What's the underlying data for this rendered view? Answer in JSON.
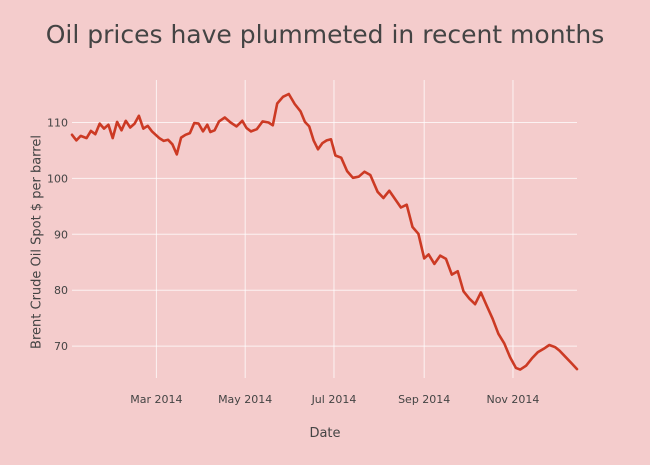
{
  "chart_data": {
    "type": "line",
    "title": "Oil prices have plummeted in recent months",
    "xlabel": "Date",
    "ylabel": "Brent Crude Oil Spot $ per barrel",
    "xlim": [
      "2014-01-02",
      "2014-12-15"
    ],
    "ylim": [
      64.3,
      117.6
    ],
    "grid": true,
    "line_color": "#cc3a24",
    "background_color": "#f4cccc",
    "x_ticks": [
      {
        "date": "2014-03-01",
        "label": "Mar 2014"
      },
      {
        "date": "2014-05-01",
        "label": "May 2014"
      },
      {
        "date": "2014-07-01",
        "label": "Jul 2014"
      },
      {
        "date": "2014-09-01",
        "label": "Sep 2014"
      },
      {
        "date": "2014-11-01",
        "label": "Nov 2014"
      }
    ],
    "y_ticks": [
      70,
      80,
      90,
      100,
      110
    ],
    "series": [
      {
        "x": [
          "2014-01-02",
          "2014-01-05",
          "2014-01-08",
          "2014-01-12",
          "2014-01-15",
          "2014-01-18",
          "2014-01-21",
          "2014-01-24",
          "2014-01-27",
          "2014-01-30",
          "2014-02-02",
          "2014-02-05",
          "2014-02-08",
          "2014-02-11",
          "2014-02-14",
          "2014-02-17",
          "2014-02-20",
          "2014-02-23",
          "2014-02-26",
          "2014-02-28",
          "2014-03-03",
          "2014-03-06",
          "2014-03-09",
          "2014-03-12",
          "2014-03-15",
          "2014-03-18",
          "2014-03-21",
          "2014-03-24",
          "2014-03-27",
          "2014-03-30",
          "2014-04-02",
          "2014-04-05",
          "2014-04-07",
          "2014-04-10",
          "2014-04-13",
          "2014-04-17",
          "2014-04-21",
          "2014-04-25",
          "2014-04-29",
          "2014-05-02",
          "2014-05-05",
          "2014-05-09",
          "2014-05-13",
          "2014-05-17",
          "2014-05-20",
          "2014-05-23",
          "2014-05-27",
          "2014-05-31",
          "2014-06-04",
          "2014-06-08",
          "2014-06-11",
          "2014-06-14",
          "2014-06-17",
          "2014-06-20",
          "2014-06-23",
          "2014-06-26",
          "2014-06-29",
          "2014-07-02",
          "2014-07-06",
          "2014-07-10",
          "2014-07-14",
          "2014-07-18",
          "2014-07-22",
          "2014-07-26",
          "2014-07-31",
          "2014-08-04",
          "2014-08-08",
          "2014-08-12",
          "2014-08-16",
          "2014-08-20",
          "2014-08-24",
          "2014-08-28",
          "2014-09-01",
          "2014-09-04",
          "2014-09-08",
          "2014-09-12",
          "2014-09-16",
          "2014-09-20",
          "2014-09-24",
          "2014-09-28",
          "2014-10-02",
          "2014-10-06",
          "2014-10-10",
          "2014-10-14",
          "2014-10-18",
          "2014-10-22",
          "2014-10-26",
          "2014-10-30",
          "2014-11-03",
          "2014-11-06",
          "2014-11-10",
          "2014-11-14",
          "2014-11-18",
          "2014-11-22",
          "2014-11-26",
          "2014-11-30",
          "2014-12-03",
          "2014-12-07",
          "2014-12-11",
          "2014-12-15"
        ],
        "y": [
          107.8,
          106.8,
          107.6,
          107.2,
          108.5,
          107.9,
          109.8,
          108.9,
          109.6,
          107.2,
          110.1,
          108.6,
          110.3,
          109.1,
          109.8,
          111.2,
          108.9,
          109.4,
          108.4,
          107.9,
          107.2,
          106.7,
          106.9,
          106.1,
          104.3,
          107.3,
          107.8,
          108.1,
          109.9,
          109.8,
          108.4,
          109.6,
          108.3,
          108.6,
          110.2,
          110.9,
          110.0,
          109.3,
          110.3,
          109.0,
          108.4,
          108.8,
          110.2,
          110.0,
          109.5,
          113.4,
          114.6,
          115.1,
          113.3,
          112.0,
          110.1,
          109.3,
          106.8,
          105.2,
          106.3,
          106.8,
          107.0,
          104.1,
          103.7,
          101.3,
          100.1,
          100.3,
          101.2,
          100.6,
          97.6,
          96.5,
          97.8,
          96.3,
          94.8,
          95.3,
          91.3,
          90.1,
          85.7,
          86.4,
          84.7,
          86.2,
          85.6,
          82.8,
          83.4,
          79.8,
          78.5,
          77.5,
          79.6,
          77.2,
          74.9,
          72.2,
          70.5,
          68.0,
          66.1,
          65.8,
          66.5,
          67.8,
          68.9,
          69.5,
          70.2,
          69.8,
          69.2,
          68.1,
          67.0,
          65.9
        ],
        "marker": "none"
      }
    ]
  }
}
